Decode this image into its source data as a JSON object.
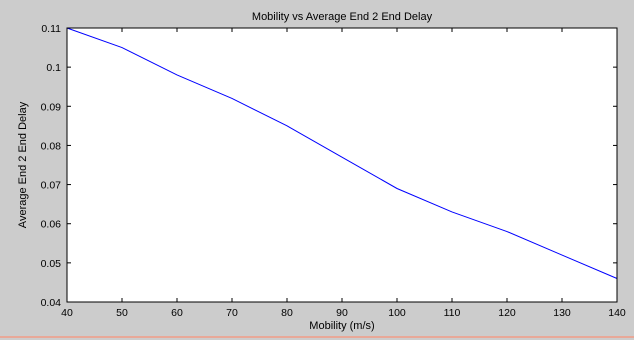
{
  "chart_data": {
    "type": "line",
    "title": "Mobility vs Average End 2 End Delay",
    "xlabel": "Mobility (m/s)",
    "ylabel": "Average End 2 End Delay",
    "xlim": [
      40,
      140
    ],
    "ylim": [
      0.04,
      0.11
    ],
    "xticks": [
      40,
      50,
      60,
      70,
      80,
      90,
      100,
      110,
      120,
      130,
      140
    ],
    "yticks": [
      0.04,
      0.05,
      0.06,
      0.07,
      0.08,
      0.09,
      0.1,
      0.11
    ],
    "grid": false,
    "series": [
      {
        "color": "#0000ff",
        "x": [
          40,
          50,
          60,
          70,
          80,
          90,
          100,
          110,
          120,
          130,
          140
        ],
        "y": [
          0.11,
          0.105,
          0.098,
          0.092,
          0.085,
          0.077,
          0.069,
          0.063,
          0.058,
          0.052,
          0.046
        ]
      }
    ]
  },
  "colors": {
    "figure_background": "#cccccc",
    "axes_background": "#ffffff",
    "axis_line": "#000000",
    "bottom_rule": "#e8a898"
  }
}
